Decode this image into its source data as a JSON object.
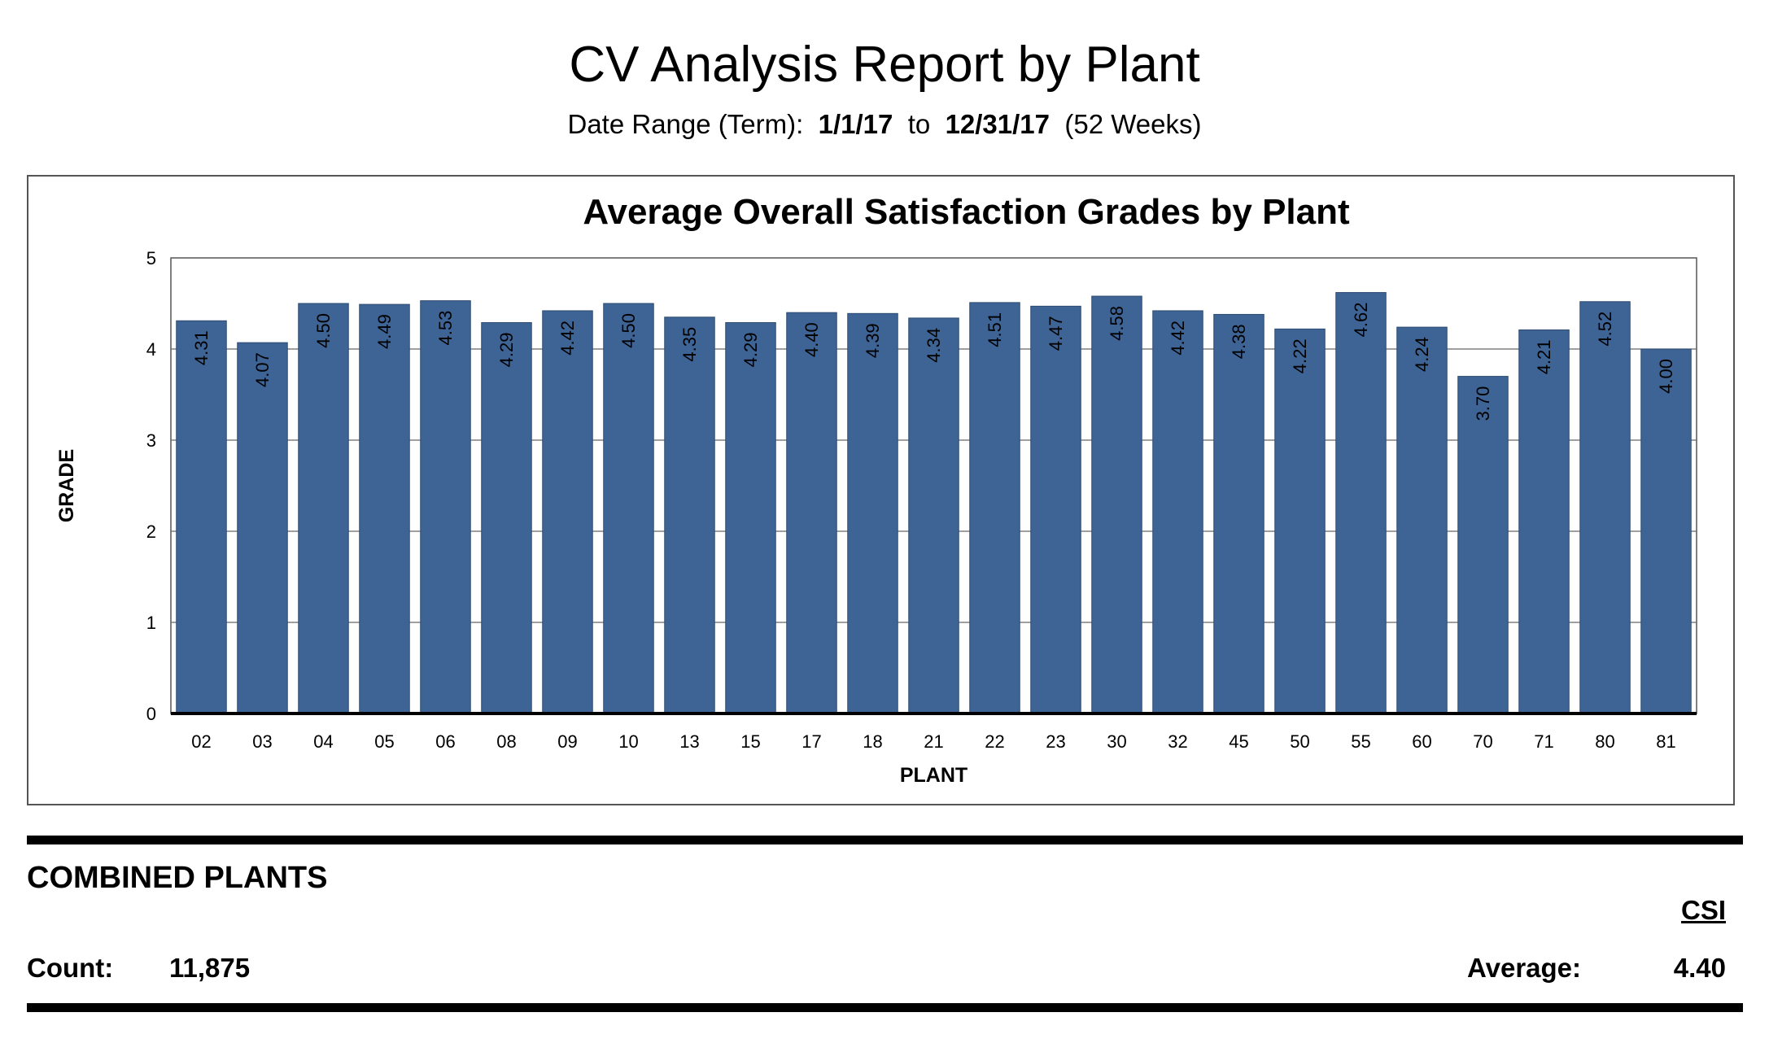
{
  "report": {
    "title": "CV Analysis Report by Plant",
    "date_range_label": "Date Range (Term):",
    "start_date": "1/1/17",
    "to_label": "to",
    "end_date": "12/31/17",
    "weeks": "(52 Weeks)"
  },
  "chart_data": {
    "type": "bar",
    "title": "Average Overall Satisfaction Grades by Plant",
    "xlabel": "PLANT",
    "ylabel": "GRADE",
    "ylim": [
      0,
      5
    ],
    "yticks": [
      0,
      1,
      2,
      3,
      4,
      5
    ],
    "grid": true,
    "bar_color": "#3e6496",
    "categories": [
      "02",
      "03",
      "04",
      "05",
      "06",
      "08",
      "09",
      "10",
      "13",
      "15",
      "17",
      "18",
      "21",
      "22",
      "23",
      "30",
      "32",
      "45",
      "50",
      "55",
      "60",
      "70",
      "71",
      "80",
      "81"
    ],
    "values": [
      4.31,
      4.07,
      4.5,
      4.49,
      4.53,
      4.29,
      4.42,
      4.5,
      4.35,
      4.29,
      4.4,
      4.39,
      4.34,
      4.51,
      4.47,
      4.58,
      4.42,
      4.38,
      4.22,
      4.62,
      4.24,
      3.7,
      4.21,
      4.52,
      4.0
    ],
    "data_labels": [
      "4.31",
      "4.07",
      "4.50",
      "4.49",
      "4.53",
      "4.29",
      "4.42",
      "4.50",
      "4.35",
      "4.29",
      "4.40",
      "4.39",
      "4.34",
      "4.51",
      "4.47",
      "4.58",
      "4.42",
      "4.38",
      "4.22",
      "4.62",
      "4.24",
      "3.70",
      "4.21",
      "4.52",
      "4.00"
    ]
  },
  "summary": {
    "title": "COMBINED PLANTS",
    "csi_label": "CSI",
    "count_label": "Count:",
    "count_value": "11,875",
    "average_label": "Average:",
    "average_value": "4.40"
  }
}
